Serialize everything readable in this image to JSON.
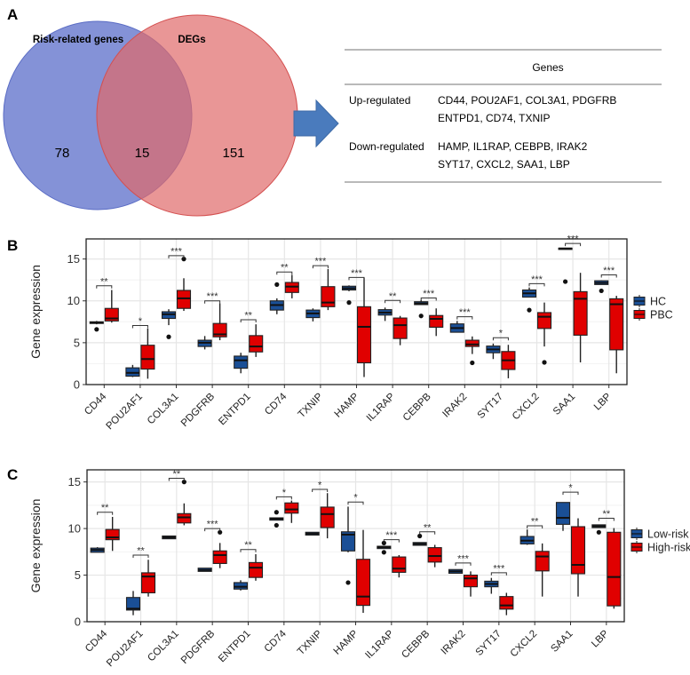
{
  "panels": {
    "a": "A",
    "b": "B",
    "c": "C"
  },
  "venn": {
    "left_label": "Risk-related genes",
    "right_label": "DEGs",
    "left_only": "78",
    "overlap": "15",
    "right_only": "151",
    "colors": {
      "left": "#6f7fd0",
      "right": "#e06a6a"
    }
  },
  "arrow_icon": "right-arrow-icon",
  "gene_table": {
    "header": "Genes",
    "rows": [
      {
        "label": "Up-regulated",
        "lines": [
          "CD44, POU2AF1, COL3A1, PDGFRB",
          "ENTPD1, CD74, TXNIP"
        ]
      },
      {
        "label": "Down-regulated",
        "lines": [
          "HAMP, IL1RAP, CEBPB, IRAK2",
          "SYT17, CXCL2, SAA1, LBP"
        ]
      }
    ]
  },
  "chart_data": [
    {
      "type": "boxplot",
      "ylabel": "Gene expression",
      "ylim": [
        0,
        17.4
      ],
      "yticks": [
        0,
        5,
        10,
        15
      ],
      "grid": true,
      "legend": "right",
      "categories": [
        "CD44",
        "POU2AF1",
        "COL3A1",
        "PDGFRB",
        "ENTPD1",
        "CD74",
        "TXNIP",
        "HAMP",
        "IL1RAP",
        "CEBPB",
        "IRAK2",
        "SYT17",
        "CXCL2",
        "SAA1",
        "LBP"
      ],
      "significance": [
        "**",
        "*",
        "***",
        "***",
        "**",
        "**",
        "***",
        "***",
        "**",
        "***",
        "***",
        "*",
        "***",
        "***",
        "***"
      ],
      "significance_y": [
        11.8,
        7.05,
        15.4,
        10.0,
        7.75,
        13.45,
        14.2,
        12.8,
        10.05,
        10.35,
        8.1,
        5.6,
        12.05,
        16.85,
        13.1
      ],
      "series": [
        {
          "name": "HC",
          "color": "#1a4f96",
          "boxes": [
            [
              7.2,
              7.3,
              7.4,
              7.5,
              7.6
            ],
            [
              0.9,
              1.0,
              1.4,
              2.0,
              2.35
            ],
            [
              7.1,
              7.9,
              8.4,
              8.7,
              9.0
            ],
            [
              4.2,
              4.55,
              5.0,
              5.3,
              5.8
            ],
            [
              1.35,
              1.95,
              2.9,
              3.4,
              3.8
            ],
            [
              8.4,
              8.9,
              9.5,
              10.0,
              10.3
            ],
            [
              7.55,
              8.0,
              8.5,
              8.9,
              9.1
            ],
            [
              11.15,
              11.3,
              11.5,
              11.75,
              11.85
            ],
            [
              7.6,
              8.3,
              8.6,
              8.95,
              9.2
            ],
            [
              9.5,
              9.55,
              9.7,
              9.9,
              10.1
            ],
            [
              6.25,
              6.25,
              6.75,
              7.25,
              7.6
            ],
            [
              3.05,
              3.8,
              4.2,
              4.6,
              4.9
            ],
            [
              10.45,
              10.45,
              10.9,
              11.3,
              11.6
            ],
            [
              16.2,
              16.2,
              16.25,
              16.3,
              16.3
            ],
            [
              11.95,
              11.95,
              12.15,
              12.4,
              12.45
            ]
          ],
          "outliers": [
            [
              6.6
            ],
            [],
            [
              5.7
            ],
            [],
            [],
            [
              11.95
            ],
            [],
            [
              9.8
            ],
            [],
            [
              8.2
            ],
            [],
            [],
            [
              8.9
            ],
            [
              12.3
            ],
            [
              11.2
            ]
          ]
        },
        {
          "name": "PBC",
          "color": "#e00000",
          "boxes": [
            [
              7.4,
              7.6,
              7.9,
              9.1,
              11.3
            ],
            [
              0.7,
              1.85,
              3.05,
              4.7,
              6.7
            ],
            [
              8.8,
              9.1,
              10.3,
              11.25,
              12.7
            ],
            [
              5.3,
              5.7,
              6.0,
              7.3,
              9.7
            ],
            [
              3.3,
              3.9,
              4.55,
              5.85,
              7.2
            ],
            [
              10.3,
              11.0,
              11.7,
              12.2,
              13.1
            ],
            [
              8.9,
              9.3,
              9.8,
              11.7,
              13.8
            ],
            [
              0.9,
              2.6,
              6.9,
              9.3,
              12.75
            ],
            [
              4.7,
              5.5,
              7.1,
              7.95,
              8.2
            ],
            [
              5.8,
              6.85,
              7.85,
              8.25,
              9.1
            ],
            [
              3.65,
              4.55,
              4.8,
              5.3,
              5.75
            ],
            [
              0.75,
              1.8,
              2.9,
              3.95,
              4.75
            ],
            [
              4.55,
              6.7,
              8.1,
              8.6,
              9.8
            ],
            [
              2.65,
              5.9,
              10.25,
              11.1,
              13.35
            ],
            [
              1.35,
              4.15,
              9.6,
              10.25,
              10.6
            ]
          ],
          "outliers": [
            [],
            [],
            [
              15.0
            ],
            [],
            [],
            [],
            [],
            [],
            [],
            [],
            [
              2.6
            ],
            [],
            [
              2.65
            ],
            [],
            []
          ]
        }
      ]
    },
    {
      "type": "boxplot",
      "ylabel": "Gene expression",
      "ylim": [
        0,
        16.3
      ],
      "yticks": [
        0,
        5,
        10,
        15
      ],
      "grid": true,
      "legend": "right",
      "categories": [
        "CD44",
        "POU2AF1",
        "COL3A1",
        "PDGFRB",
        "ENTPD1",
        "CD74",
        "TXNIP",
        "HAMP",
        "IL1RAP",
        "CEBPB",
        "IRAK2",
        "SYT17",
        "CXCL2",
        "SAA1",
        "LBP"
      ],
      "significance": [
        "**",
        "**",
        "**",
        "***",
        "**",
        "*",
        "*",
        "*",
        "***",
        "**",
        "***",
        "***",
        "**",
        "*",
        "**"
      ],
      "significance_y": [
        11.75,
        7.15,
        15.4,
        10.0,
        7.75,
        13.4,
        14.2,
        12.85,
        8.8,
        9.65,
        6.3,
        5.25,
        10.3,
        13.9,
        11.1
      ],
      "series": [
        {
          "name": "Low-risk",
          "color": "#1a4f96",
          "boxes": [
            [
              7.45,
              7.45,
              7.7,
              7.9,
              8.0
            ],
            [
              0.7,
              1.25,
              1.4,
              2.6,
              3.3
            ],
            [
              8.9,
              8.9,
              9.05,
              9.2,
              9.2
            ],
            [
              5.4,
              5.4,
              5.55,
              5.75,
              5.75
            ],
            [
              3.35,
              3.5,
              3.75,
              4.2,
              4.45
            ],
            [
              10.9,
              10.9,
              11.05,
              11.15,
              11.15
            ],
            [
              9.3,
              9.3,
              9.45,
              9.6,
              9.6
            ],
            [
              7.45,
              7.6,
              9.35,
              9.65,
              12.35
            ],
            [
              7.85,
              7.85,
              8.0,
              8.1,
              8.1
            ],
            [
              8.2,
              8.2,
              8.35,
              8.5,
              8.5
            ],
            [
              5.2,
              5.2,
              5.4,
              5.6,
              5.6
            ],
            [
              3.0,
              3.75,
              4.05,
              4.35,
              4.7
            ],
            [
              8.25,
              8.35,
              8.7,
              9.15,
              9.9
            ],
            [
              9.75,
              10.45,
              11.15,
              12.8,
              12.8
            ],
            [
              10.1,
              10.1,
              10.25,
              10.4,
              10.4
            ]
          ],
          "outliers": [
            [],
            [],
            [],
            [],
            [],
            [
              11.75,
              10.35
            ],
            [],
            [
              4.2
            ],
            [
              8.45,
              7.45
            ],
            [
              9.2
            ],
            [],
            [],
            [],
            [],
            [
              9.6
            ]
          ]
        },
        {
          "name": "High-risk",
          "color": "#e00000",
          "boxes": [
            [
              7.6,
              8.8,
              9.05,
              9.9,
              11.25
            ],
            [
              2.7,
              3.1,
              4.85,
              5.25,
              6.65
            ],
            [
              10.35,
              10.6,
              11.2,
              11.6,
              12.7
            ],
            [
              5.75,
              6.25,
              7.15,
              7.6,
              8.45
            ],
            [
              4.4,
              4.75,
              5.8,
              6.35,
              7.25
            ],
            [
              10.6,
              11.65,
              12.05,
              12.75,
              13.0
            ],
            [
              8.95,
              10.1,
              11.55,
              12.3,
              13.8
            ],
            [
              0.95,
              1.75,
              2.7,
              6.7,
              9.85
            ],
            [
              4.75,
              5.3,
              5.7,
              6.95,
              7.15
            ],
            [
              5.85,
              6.4,
              7.05,
              7.95,
              8.25
            ],
            [
              2.7,
              3.75,
              4.65,
              5.0,
              5.4
            ],
            [
              0.7,
              1.35,
              1.75,
              2.7,
              3.1
            ],
            [
              2.7,
              5.45,
              7.0,
              7.55,
              8.4
            ],
            [
              2.7,
              5.15,
              6.1,
              10.2,
              11.1
            ],
            [
              1.4,
              1.7,
              4.8,
              9.6,
              10.05
            ]
          ],
          "outliers": [
            [],
            [],
            [
              15.0
            ],
            [
              9.6
            ],
            [],
            [],
            [],
            [],
            [],
            [],
            [],
            [],
            [],
            [],
            []
          ]
        }
      ]
    }
  ]
}
